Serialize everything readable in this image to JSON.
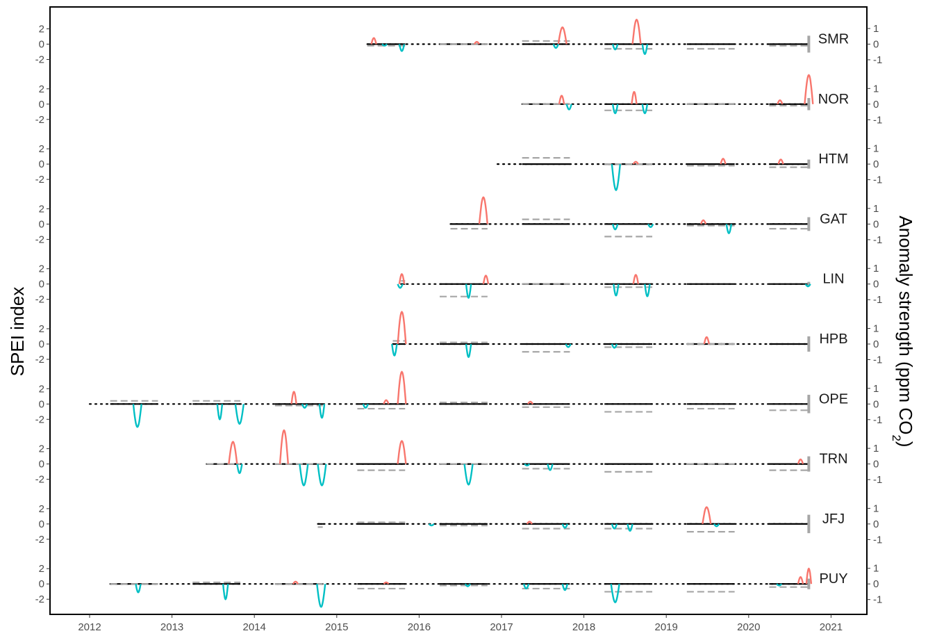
{
  "chart_data": {
    "type": "line",
    "ylabel_left": "SPEI index",
    "ylabel_right": "Anomaly strength (ppm CO",
    "ylabel_right_sub": "2",
    "ylabel_right_close": ")",
    "x_ticks": [
      "2012",
      "2013",
      "2014",
      "2015",
      "2016",
      "2017",
      "2018",
      "2019",
      "2020",
      "2021"
    ],
    "xlim": [
      2012.0,
      2021.0
    ],
    "left_ticks": [
      {
        "v": 2,
        "label": "2"
      },
      {
        "v": 0,
        "label": "0"
      },
      {
        "v": -2,
        "label": "-2"
      }
    ],
    "right_ticks": [
      {
        "v": 1,
        "label": "1"
      },
      {
        "v": 0,
        "label": "0"
      },
      {
        "v": -1,
        "label": "-1"
      }
    ],
    "colors": {
      "positive": "#f8766d",
      "negative": "#00bfc4",
      "baseline": "#000000",
      "anomaly": "#a6a6a6"
    },
    "growing_seasons": [
      [
        2012.25,
        2012.83
      ],
      [
        2013.25,
        2013.83
      ],
      [
        2014.25,
        2014.83
      ],
      [
        2015.25,
        2015.83
      ],
      [
        2016.25,
        2016.83
      ],
      [
        2017.25,
        2017.83
      ],
      [
        2018.25,
        2018.83
      ],
      [
        2019.25,
        2019.83
      ],
      [
        2020.25,
        2020.73
      ]
    ],
    "stations": [
      {
        "name": "SMR",
        "start": 2015.37,
        "pos_events": [
          [
            2015.45,
            0.8
          ],
          [
            2016.7,
            0.3
          ],
          [
            2017.74,
            2.2
          ],
          [
            2018.64,
            3.2
          ]
        ],
        "neg_events": [
          [
            2015.58,
            -0.2
          ],
          [
            2015.79,
            -0.9
          ],
          [
            2017.66,
            -0.5
          ],
          [
            2018.38,
            -0.7
          ],
          [
            2018.74,
            -1.3
          ]
        ],
        "anom": [
          -0.1,
          0.0,
          0.2,
          -0.3,
          -0.3,
          -0.1
        ],
        "end_bar": 0.9
      },
      {
        "name": "NOR",
        "start": 2017.25,
        "pos_events": [
          [
            2017.73,
            1.1
          ],
          [
            2018.61,
            1.6
          ],
          [
            2020.38,
            0.5
          ],
          [
            2020.73,
            3.8
          ]
        ],
        "neg_events": [
          [
            2017.82,
            -0.7
          ],
          [
            2018.38,
            -1.2
          ],
          [
            2018.74,
            -1.2
          ]
        ],
        "anom": [
          0.0,
          -0.4,
          0.0,
          -0.1
        ],
        "end_bar": 0.6
      },
      {
        "name": "HTM",
        "start": 2016.95,
        "pos_events": [
          [
            2018.63,
            0.3
          ],
          [
            2019.69,
            0.7
          ],
          [
            2020.39,
            0.6
          ]
        ],
        "neg_events": [
          [
            2018.39,
            -3.4
          ]
        ],
        "anom": [
          0.4,
          0.0,
          -0.1,
          -0.2
        ],
        "end_bar": 0.4
      },
      {
        "name": "GAT",
        "start": 2016.38,
        "pos_events": [
          [
            2016.78,
            3.5
          ],
          [
            2019.45,
            0.5
          ]
        ],
        "neg_events": [
          [
            2018.38,
            -0.7
          ],
          [
            2018.81,
            -0.4
          ],
          [
            2019.76,
            -1.2
          ]
        ],
        "anom": [
          -0.3,
          0.3,
          -0.8,
          -0.1,
          -0.3
        ],
        "end_bar": 0.7
      },
      {
        "name": "LIN",
        "start": 2015.78,
        "pos_events": [
          [
            2015.79,
            1.3
          ],
          [
            2016.81,
            1.1
          ],
          [
            2018.63,
            1.2
          ]
        ],
        "neg_events": [
          [
            2015.77,
            -0.5
          ],
          [
            2016.6,
            -1.8
          ],
          [
            2018.39,
            -1.5
          ],
          [
            2018.77,
            -1.6
          ],
          [
            2020.72,
            -0.3
          ]
        ],
        "anom": [
          0.2,
          -0.8,
          0.0,
          -0.2
        ],
        "end_bar": 0.1
      },
      {
        "name": "HPB",
        "start": 2015.68,
        "pos_events": [
          [
            2015.79,
            4.2
          ],
          [
            2019.49,
            0.9
          ]
        ],
        "neg_events": [
          [
            2015.7,
            -1.5
          ],
          [
            2016.6,
            -1.7
          ],
          [
            2017.81,
            -0.4
          ],
          [
            2018.37,
            -0.5
          ]
        ],
        "anom": [
          0.2,
          0.1,
          -0.5,
          -0.2,
          0.0
        ],
        "end_bar": 0.8
      },
      {
        "name": "OPE",
        "start": 2012.0,
        "pos_events": [
          [
            2014.48,
            1.6
          ],
          [
            2015.6,
            0.5
          ],
          [
            2015.79,
            4.2
          ],
          [
            2017.35,
            0.3
          ]
        ],
        "neg_events": [
          [
            2012.58,
            -3.0
          ],
          [
            2013.58,
            -2.0
          ],
          [
            2013.82,
            -2.6
          ],
          [
            2014.61,
            -0.5
          ],
          [
            2014.82,
            -1.8
          ],
          [
            2015.35,
            -0.5
          ]
        ],
        "anom": [
          0.2,
          0.2,
          -0.1,
          -0.3,
          0.1,
          -0.2,
          -0.5,
          -0.3,
          -0.4
        ],
        "end_bar": 1.0
      },
      {
        "name": "TRN",
        "start": 2013.42,
        "pos_events": [
          [
            2013.74,
            2.9
          ],
          [
            2014.36,
            4.4
          ],
          [
            2015.79,
            3.0
          ],
          [
            2020.63,
            0.6
          ]
        ],
        "neg_events": [
          [
            2013.82,
            -1.2
          ],
          [
            2014.6,
            -2.8
          ],
          [
            2014.82,
            -2.8
          ],
          [
            2016.6,
            -2.7
          ],
          [
            2017.31,
            -0.2
          ],
          [
            2017.59,
            -0.8
          ]
        ],
        "anom": [
          0.0,
          0.0,
          -0.4,
          0.0,
          -0.3,
          -0.5,
          0.0,
          -0.4
        ],
        "end_bar": 0.8
      },
      {
        "name": "JFJ",
        "start": 2014.77,
        "pos_events": [
          [
            2017.34,
            0.3
          ],
          [
            2019.49,
            2.2
          ]
        ],
        "neg_events": [
          [
            2016.15,
            -0.2
          ],
          [
            2017.77,
            -0.5
          ],
          [
            2018.37,
            -0.6
          ],
          [
            2018.56,
            -0.9
          ],
          [
            2019.61,
            -0.3
          ]
        ],
        "anom": [
          -0.2,
          0.1,
          -0.1,
          -0.3,
          -0.3,
          -0.5
        ],
        "end_bar": 1.0
      },
      {
        "name": "PUY",
        "start": 2012.25,
        "pos_events": [
          [
            2014.5,
            0.3
          ],
          [
            2015.6,
            0.2
          ],
          [
            2020.63,
            0.9
          ],
          [
            2020.73,
            2.0
          ]
        ],
        "neg_events": [
          [
            2012.59,
            -1.1
          ],
          [
            2013.65,
            -2.0
          ],
          [
            2014.81,
            -3.0
          ],
          [
            2016.59,
            -0.3
          ],
          [
            2017.3,
            -0.6
          ],
          [
            2017.77,
            -0.8
          ],
          [
            2018.38,
            -2.4
          ],
          [
            2020.37,
            -0.2
          ]
        ],
        "anom": [
          0.0,
          0.1,
          0.0,
          -0.3,
          -0.1,
          -0.3,
          -0.5,
          -0.5,
          -0.2
        ],
        "end_bar": 0.5
      }
    ]
  }
}
